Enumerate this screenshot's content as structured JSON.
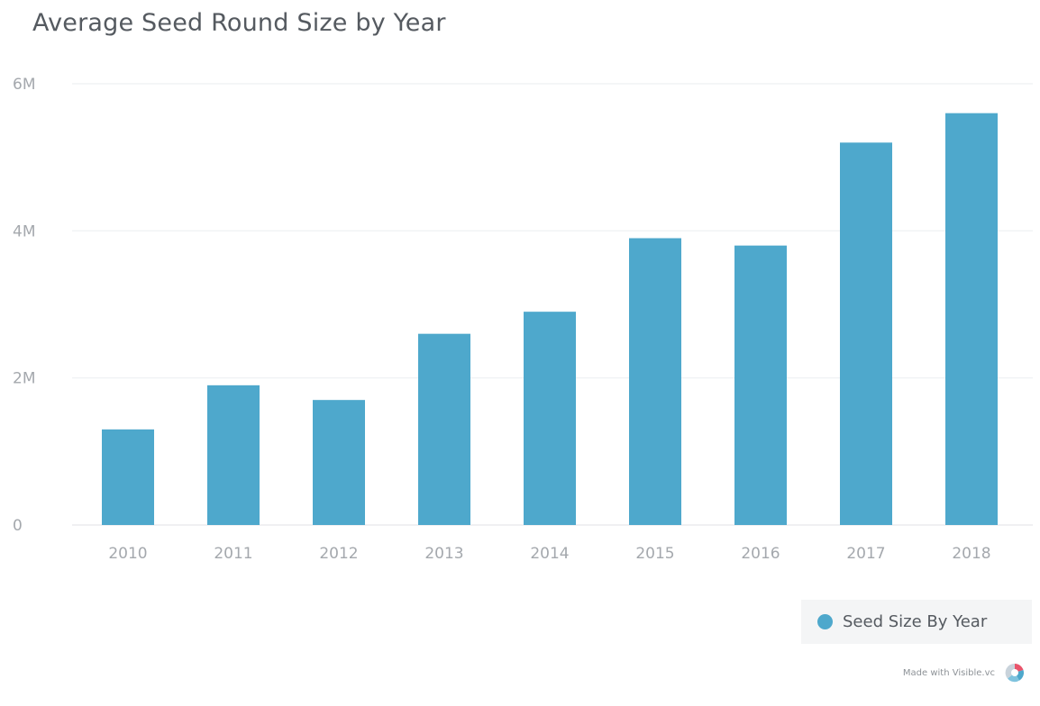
{
  "chart_data": {
    "type": "bar",
    "title": "Average Seed Round Size by Year",
    "categories": [
      "2010",
      "2011",
      "2012",
      "2013",
      "2014",
      "2015",
      "2016",
      "2017",
      "2018"
    ],
    "series": [
      {
        "name": "Seed Size By Year",
        "values": [
          1300000,
          1900000,
          1700000,
          2600000,
          2900000,
          3900000,
          3800000,
          5200000,
          5600000
        ]
      }
    ],
    "ylim": [
      0,
      6000000
    ],
    "yticks": [
      {
        "value": 0,
        "label": "0"
      },
      {
        "value": 2000000,
        "label": "2M"
      },
      {
        "value": 4000000,
        "label": "4M"
      },
      {
        "value": 6000000,
        "label": "6M"
      }
    ],
    "grid": true,
    "legend_position": "bottom-right",
    "bar_color": "#4ea8cc"
  },
  "credit": {
    "text": "Made with Visible.vc",
    "icon": "visible-logo-icon"
  }
}
